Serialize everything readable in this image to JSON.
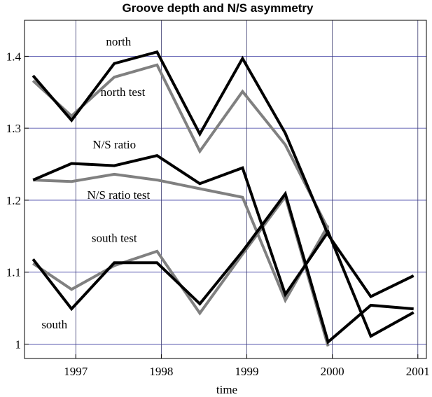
{
  "chart_data": {
    "type": "line",
    "title": "Groove depth and N/S asymmetry",
    "xlabel": "time",
    "ylabel": "",
    "xlim": [
      1996.4,
      2001.1
    ],
    "ylim": [
      0.98,
      1.45
    ],
    "xticks": [
      1997,
      1998,
      1999,
      2000,
      2001
    ],
    "xtick_labels": [
      "1997",
      "1998",
      "1999",
      "2000",
      "2001"
    ],
    "yticks": [
      1.0,
      1.1,
      1.2,
      1.3,
      1.4
    ],
    "ytick_labels": [
      "1",
      "1.1",
      "1.2",
      "1.3",
      "1.4"
    ],
    "grid": true,
    "colors": {
      "measured": "#000000",
      "test": "#808080",
      "grid_h": "#3a3aa0",
      "grid_v": "#3a3a70"
    },
    "series": [
      {
        "name": "north",
        "style": "measured",
        "x": [
          1996.5,
          1996.95,
          1997.45,
          1997.95,
          1998.45,
          1998.95,
          1999.45,
          1999.95,
          2000.45,
          2000.95
        ],
        "y": [
          1.373,
          1.311,
          1.39,
          1.406,
          1.292,
          1.397,
          1.293,
          1.152,
          1.066,
          1.095
        ]
      },
      {
        "name": "north test",
        "style": "test",
        "x": [
          1996.5,
          1996.95,
          1997.45,
          1997.95,
          1998.45,
          1998.95,
          1999.45,
          1999.95
        ],
        "y": [
          1.366,
          1.317,
          1.371,
          1.388,
          1.268,
          1.351,
          1.277,
          1.16
        ]
      },
      {
        "name": "N/S ratio",
        "style": "measured",
        "x": [
          1996.5,
          1996.95,
          1997.45,
          1997.95,
          1998.45,
          1998.95,
          1999.45,
          1999.95,
          2000.45,
          2000.95
        ],
        "y": [
          1.228,
          1.251,
          1.248,
          1.262,
          1.223,
          1.245,
          1.069,
          1.156,
          1.011,
          1.044
        ]
      },
      {
        "name": "N/S ratio test",
        "style": "test",
        "x": [
          1996.5,
          1996.95,
          1997.45,
          1997.95,
          1998.45,
          1998.95,
          1999.45,
          1999.95
        ],
        "y": [
          1.228,
          1.226,
          1.236,
          1.228,
          1.216,
          1.204,
          1.061,
          1.165
        ]
      },
      {
        "name": "south",
        "style": "measured",
        "x": [
          1996.5,
          1996.95,
          1997.45,
          1997.95,
          1998.45,
          1998.95,
          1999.45,
          1999.95,
          2000.45,
          2000.95
        ],
        "y": [
          1.118,
          1.049,
          1.113,
          1.113,
          1.056,
          1.129,
          1.209,
          1.003,
          1.054,
          1.049
        ]
      },
      {
        "name": "south test",
        "style": "test",
        "x": [
          1996.5,
          1996.95,
          1997.45,
          1997.95,
          1998.45,
          1998.95,
          1999.45,
          1999.95
        ],
        "y": [
          1.112,
          1.076,
          1.109,
          1.129,
          1.043,
          1.125,
          1.205,
          0.997
        ]
      }
    ],
    "annotations": [
      {
        "text": "north",
        "x": 1997.5,
        "y": 1.415
      },
      {
        "text": "north test",
        "x": 1997.55,
        "y": 1.345
      },
      {
        "text": "N/S ratio",
        "x": 1997.45,
        "y": 1.272
      },
      {
        "text": "N/S ratio test",
        "x": 1997.5,
        "y": 1.202
      },
      {
        "text": "south test",
        "x": 1997.45,
        "y": 1.142
      },
      {
        "text": "south",
        "x": 1996.75,
        "y": 1.022
      }
    ]
  }
}
